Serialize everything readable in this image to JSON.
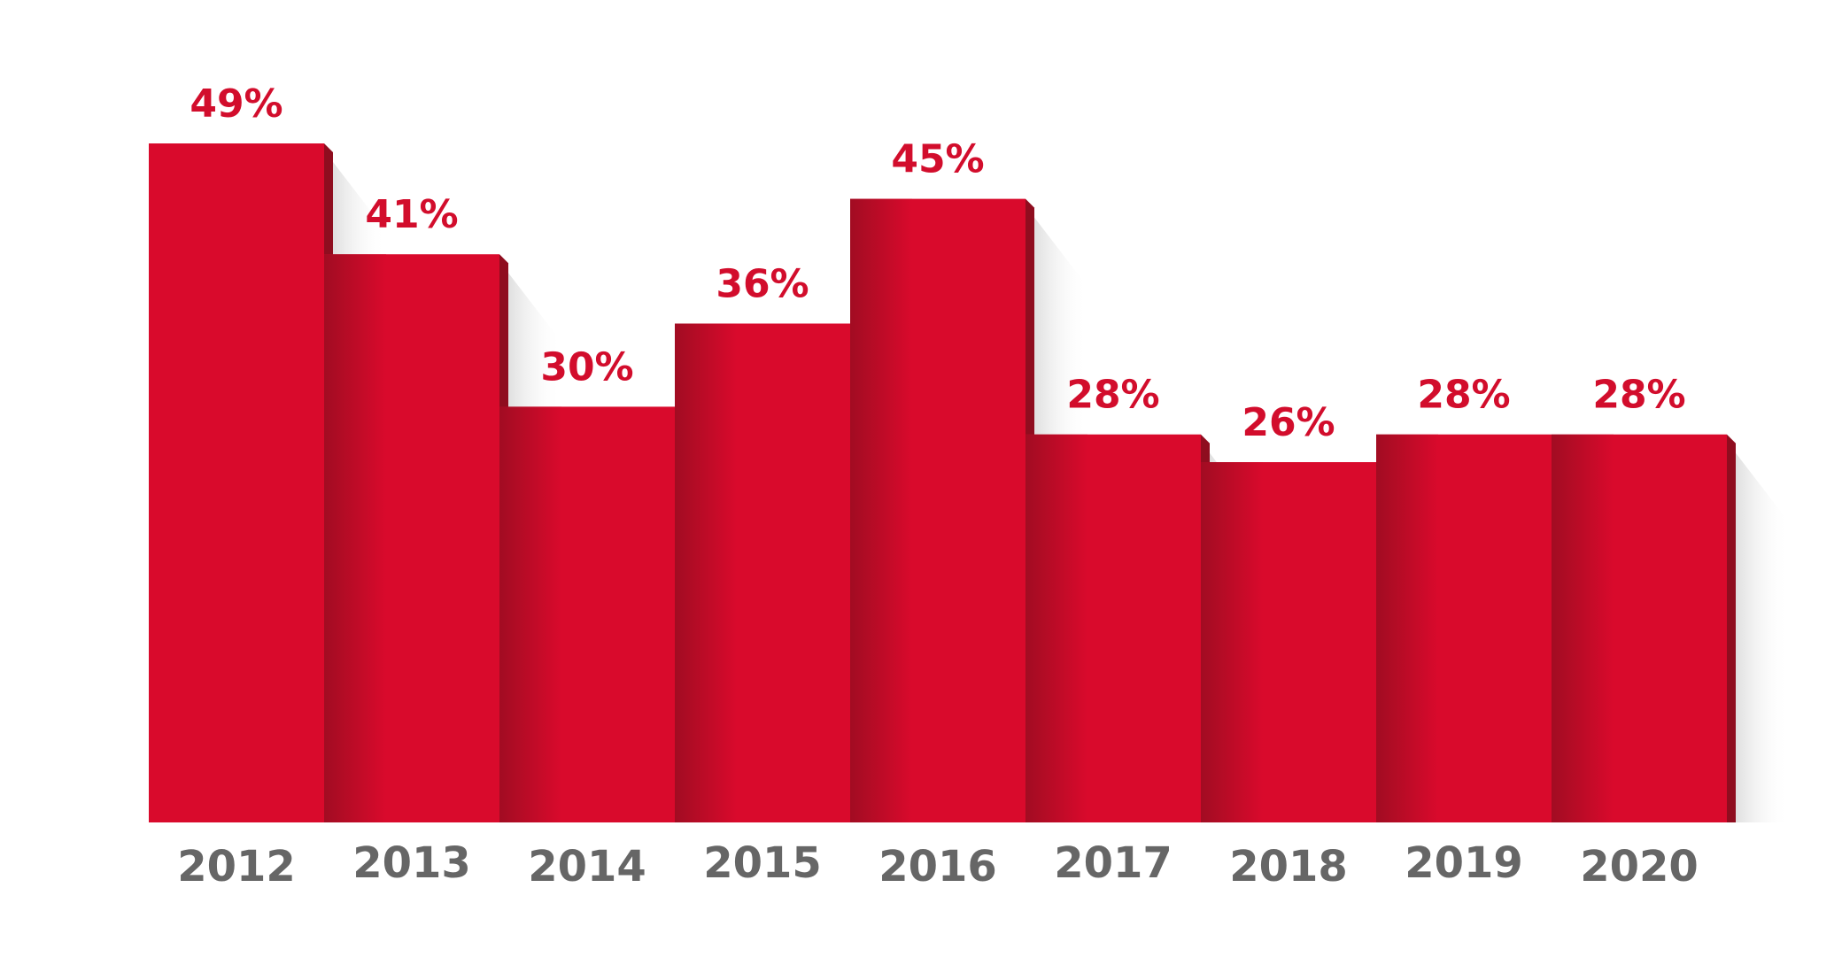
{
  "chart_data": {
    "type": "bar",
    "title": "",
    "xlabel": "",
    "ylabel": "",
    "categories": [
      "2012",
      "2013",
      "2014",
      "2015",
      "2016",
      "2017",
      "2018",
      "2019",
      "2020"
    ],
    "values": [
      49,
      41,
      30,
      36,
      45,
      28,
      26,
      28,
      28
    ],
    "value_labels": [
      "49%",
      "41%",
      "30%",
      "36%",
      "45%",
      "28%",
      "26%",
      "28%",
      "28%"
    ],
    "unit": "%",
    "ylim": [
      0,
      49
    ],
    "grid": false,
    "legend": "none",
    "colors": {
      "bar": "#d90a2c",
      "bar_side_dark": "#8f0d1f",
      "value_label": "#d20d2c",
      "tick_label": "#666666",
      "shadow": "#d9d9d9"
    }
  }
}
